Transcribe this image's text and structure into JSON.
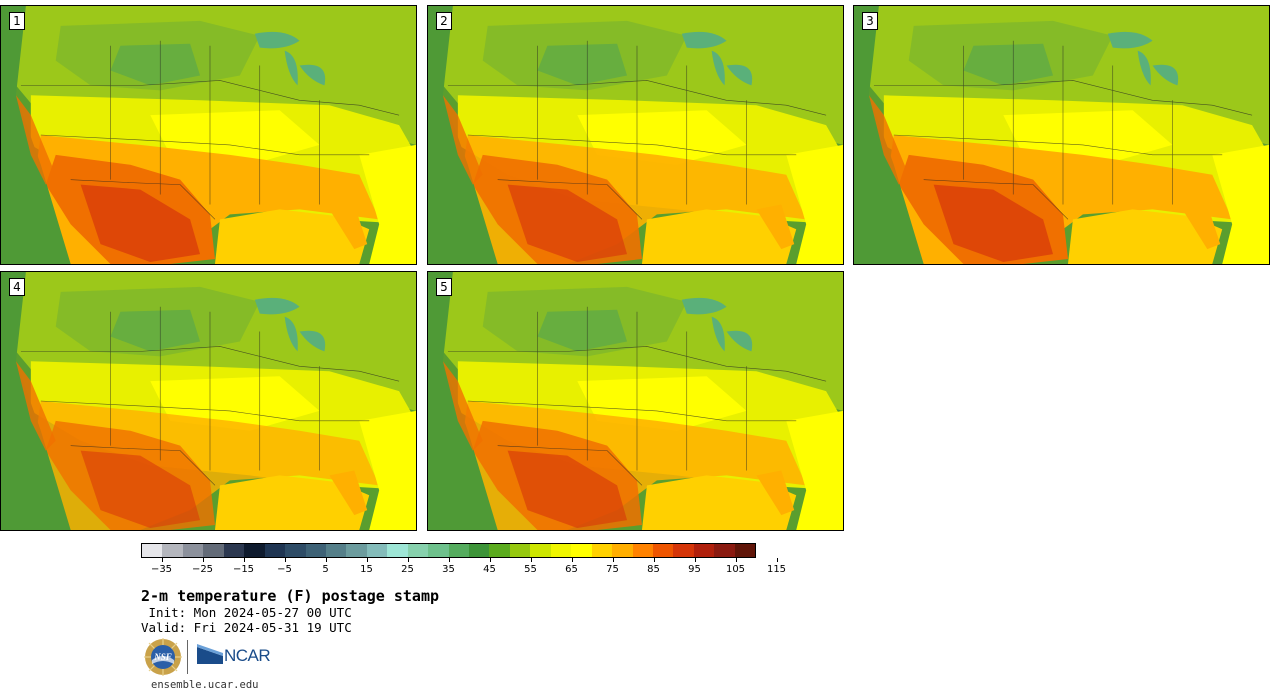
{
  "panels": [
    {
      "id": "p1",
      "label": "1"
    },
    {
      "id": "p2",
      "label": "2"
    },
    {
      "id": "p3",
      "label": "3"
    },
    {
      "id": "p4",
      "label": "4"
    },
    {
      "id": "p5",
      "label": "5"
    }
  ],
  "colorbar": {
    "colors": [
      "#e6e6ea",
      "#b4b6bd",
      "#8c919c",
      "#636b78",
      "#2c3850",
      "#0f1b2e",
      "#1f3552",
      "#2e4c66",
      "#3e6276",
      "#557f89",
      "#6c9c9e",
      "#84bcba",
      "#9ee6d6",
      "#87d1ad",
      "#6ec18c",
      "#55ac5e",
      "#3d9438",
      "#5bab1e",
      "#96c80f",
      "#cde600",
      "#f0f600",
      "#ffff00",
      "#ffd100",
      "#ffae00",
      "#ff8200",
      "#ee5500",
      "#d53508",
      "#b0200c",
      "#8a1a10",
      "#601508"
    ],
    "tick_labels": [
      "−35",
      "−25",
      "−15",
      "−5",
      "5",
      "15",
      "25",
      "35",
      "45",
      "55",
      "65",
      "75",
      "85",
      "95",
      "105",
      "115"
    ],
    "min": -40,
    "max": 120
  },
  "title": "2-m temperature (F) postage stamp",
  "init": " Init: Mon 2024-05-27 00 UTC",
  "valid": "Valid: Fri 2024-05-31 19 UTC",
  "logos": {
    "ncar": "NCAR",
    "nsf": "NSF"
  },
  "site": "ensemble.ucar.edu"
}
